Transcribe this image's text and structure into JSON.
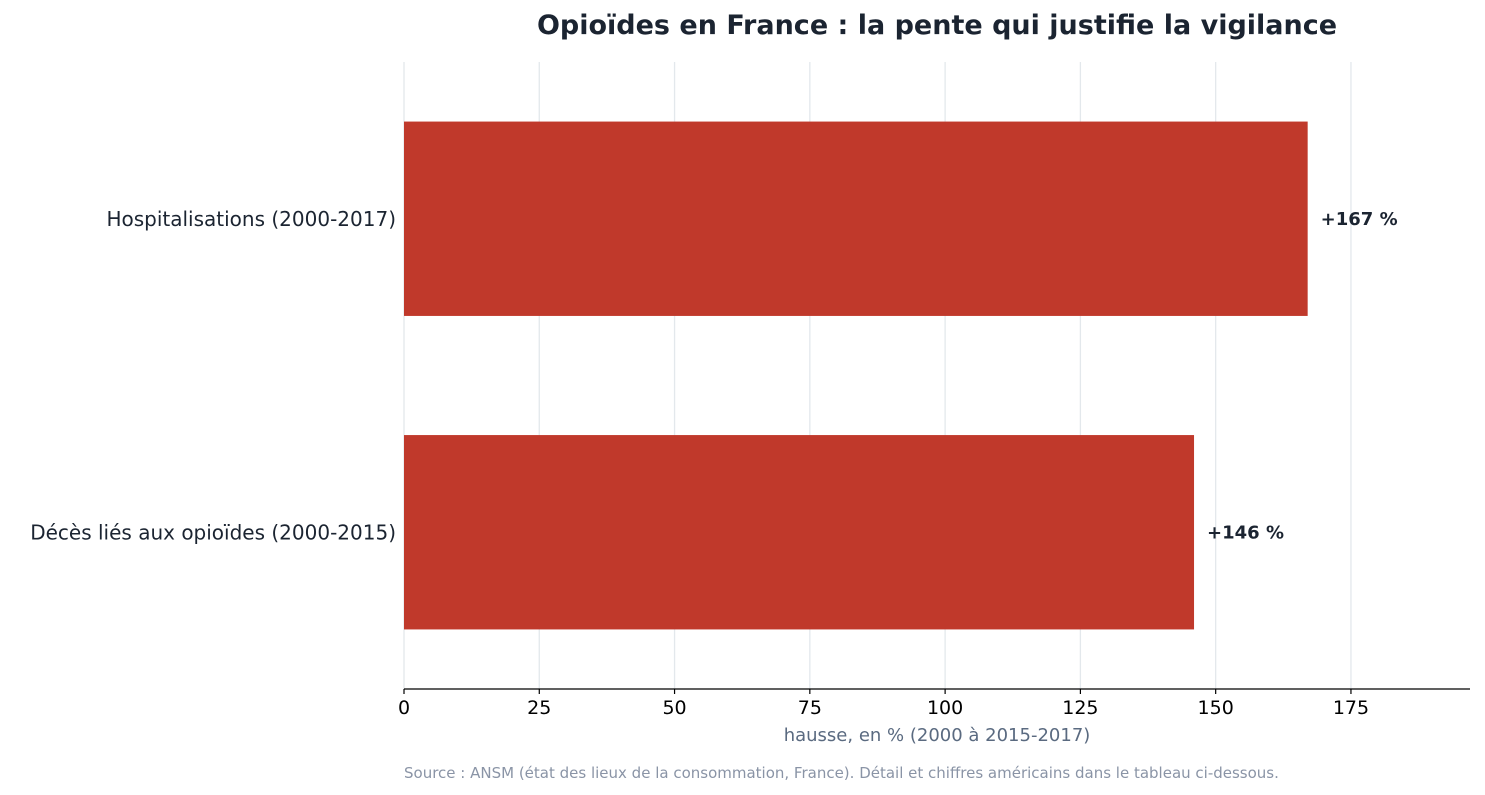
{
  "chart_data": {
    "type": "bar",
    "orientation": "horizontal",
    "title": "Opioïdes en France : la pente qui justifie la vigilance",
    "categories": [
      "Hospitalisations (2000-2017)",
      "Décès liés aux opioïdes (2000-2015)"
    ],
    "values": [
      167,
      146
    ],
    "data_labels": [
      "+167 %",
      "+146 %"
    ],
    "xlabel": "hausse, en % (2000 à 2015-2017)",
    "ylabel": "",
    "xlim": [
      0,
      197
    ],
    "xticks": [
      0,
      25,
      50,
      75,
      100,
      125,
      150,
      175
    ],
    "grid": "vertical",
    "legend": "none",
    "source": "Source : ANSM (état des lieux de la consommation, France). Détail et chiffres américains dans le tableau ci-dessous."
  },
  "colors": {
    "bar": "#c0392b",
    "text": "#1b2431",
    "axis_label": "#5a6a80",
    "grid": "#e3e8ec",
    "source": "#8a94a6"
  }
}
